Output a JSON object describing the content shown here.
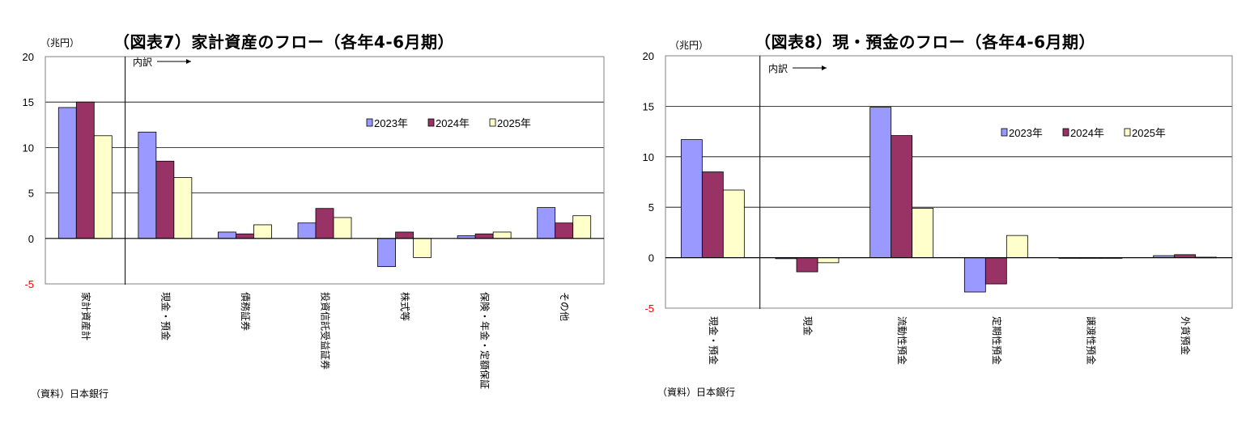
{
  "charts": [
    {
      "title": "（図表7）家計資産のフロー（各年4-6月期）",
      "unit": "（兆円）",
      "source": "（資料）日本銀行",
      "breakdown_label": "内訳",
      "legend": [
        "2023年",
        "2024年",
        "2025年"
      ]
    },
    {
      "title": "（図表8）現・預金のフロー（各年4-6月期）",
      "unit": "（兆円）",
      "source": "（資料）日本銀行",
      "breakdown_label": "内訳",
      "legend": [
        "2023年",
        "2024年",
        "2025年"
      ]
    }
  ],
  "chart_data": [
    {
      "type": "bar",
      "categories": [
        "家計資産計",
        "現金・預金",
        "債務証券",
        "投資信託受益証券",
        "株式等",
        "保険・年金・定額保証",
        "その他"
      ],
      "series": [
        {
          "name": "2023年",
          "color": "#9999ff",
          "values": [
            14.4,
            11.7,
            0.7,
            1.7,
            -3.1,
            0.3,
            3.4
          ]
        },
        {
          "name": "2024年",
          "color": "#993366",
          "values": [
            15.0,
            8.5,
            0.5,
            3.3,
            0.7,
            0.5,
            1.7
          ]
        },
        {
          "name": "2025年",
          "color": "#ffffcc",
          "values": [
            11.3,
            6.7,
            1.5,
            2.3,
            -2.1,
            0.7,
            2.5
          ]
        }
      ],
      "ylim": [
        -5,
        20
      ],
      "yticks": [
        -5,
        0,
        5,
        10,
        15,
        20
      ],
      "grid": true,
      "legend_position": "top-right"
    },
    {
      "type": "bar",
      "categories": [
        "現金・預金",
        "現金",
        "流動性預金",
        "定期性預金",
        "譲渡性預金",
        "外貨預金"
      ],
      "series": [
        {
          "name": "2023年",
          "color": "#9999ff",
          "values": [
            11.7,
            -0.1,
            14.9,
            -3.4,
            0.0,
            0.2
          ]
        },
        {
          "name": "2024年",
          "color": "#993366",
          "values": [
            8.5,
            -1.4,
            12.1,
            -2.6,
            0.0,
            0.3
          ]
        },
        {
          "name": "2025年",
          "color": "#ffffcc",
          "values": [
            6.7,
            -0.5,
            4.9,
            2.2,
            0.0,
            0.05
          ]
        }
      ],
      "ylim": [
        -5,
        20
      ],
      "yticks": [
        -5,
        0,
        5,
        10,
        15,
        20
      ],
      "grid": true,
      "legend_position": "top-right"
    }
  ]
}
